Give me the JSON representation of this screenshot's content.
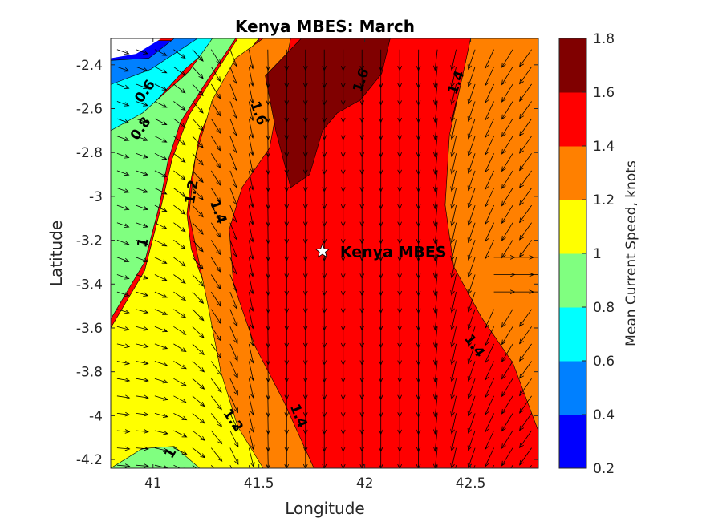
{
  "chart_data": {
    "type": "contourf-quiver",
    "title": "Kenya MBES: March",
    "xlabel": "Longitude",
    "ylabel": "Latitude",
    "xlim": [
      40.8,
      42.82
    ],
    "ylim": [
      -4.24,
      -2.28
    ],
    "xticks": [
      41,
      41.5,
      42,
      42.5
    ],
    "xtick_labels": [
      "41",
      "41.5",
      "42",
      "42.5"
    ],
    "yticks": [
      -2.4,
      -2.6,
      -2.8,
      -3,
      -3.2,
      -3.4,
      -3.6,
      -3.8,
      -4,
      -4.2
    ],
    "ytick_labels": [
      "-2.4",
      "-2.6",
      "-2.8",
      "-3",
      "-3.2",
      "-3.4",
      "-3.6",
      "-3.8",
      "-4",
      "-4.2"
    ],
    "colorbar": {
      "label": "Mean Current Speed, knots",
      "levels": [
        0.2,
        0.4,
        0.6,
        0.8,
        1.0,
        1.2,
        1.4,
        1.6,
        1.8
      ],
      "tick_labels": [
        "0.2",
        "0.4",
        "0.6",
        "0.8",
        "1",
        "1.2",
        "1.4",
        "1.6",
        "1.8"
      ],
      "colors": [
        "#0000ff",
        "#0080ff",
        "#00ffff",
        "#80ff80",
        "#ffff00",
        "#ff8000",
        "#ff0000",
        "#800000"
      ]
    },
    "speed_bands": [
      {
        "min": 0.2,
        "max": 0.4,
        "color": "#0000ff",
        "points": [
          [
            40.8,
            -2.29
          ],
          [
            41.2,
            -2.29
          ],
          [
            41.04,
            -2.42
          ],
          [
            40.95,
            -2.48
          ],
          [
            40.8,
            -2.51
          ]
        ]
      },
      {
        "min": 0.4,
        "max": 0.6,
        "color": "#0080ff",
        "points": [
          [
            40.8,
            -2.38
          ],
          [
            40.98,
            -2.37
          ],
          [
            41.1,
            -2.28
          ],
          [
            41.26,
            -2.28
          ],
          [
            41.16,
            -2.37
          ],
          [
            41.0,
            -2.47
          ],
          [
            40.88,
            -2.56
          ],
          [
            40.8,
            -2.6
          ]
        ]
      },
      {
        "min": 0.6,
        "max": 0.8,
        "color": "#00ffff",
        "points": [
          [
            40.8,
            -2.49
          ],
          [
            40.99,
            -2.42
          ],
          [
            41.21,
            -2.28
          ],
          [
            41.32,
            -2.28
          ],
          [
            41.15,
            -2.42
          ],
          [
            41.0,
            -2.58
          ],
          [
            40.9,
            -2.72
          ],
          [
            40.8,
            -2.85
          ]
        ]
      },
      {
        "min": 0.8,
        "max": 1.0,
        "color": "#80ff80",
        "points": [
          [
            40.8,
            -2.7
          ],
          [
            40.95,
            -2.62
          ],
          [
            41.17,
            -2.43
          ],
          [
            41.28,
            -2.28
          ],
          [
            41.39,
            -2.28
          ],
          [
            41.25,
            -2.48
          ],
          [
            41.13,
            -2.66
          ],
          [
            41.07,
            -2.84
          ],
          [
            41.03,
            -3.04
          ],
          [
            40.96,
            -3.3
          ],
          [
            40.8,
            -3.56
          ]
        ]
      },
      {
        "min": 0.8,
        "max": 1.0,
        "color": "#80ff80",
        "points": [
          [
            40.8,
            -4.24
          ],
          [
            40.92,
            -4.16
          ],
          [
            41.04,
            -4.13
          ],
          [
            41.16,
            -4.16
          ],
          [
            41.22,
            -4.24
          ]
        ]
      },
      {
        "min": 1.0,
        "max": 1.2,
        "color": "#ffff00",
        "points": [
          [
            41.04,
            -3.04
          ],
          [
            41.09,
            -2.83
          ],
          [
            41.17,
            -2.63
          ],
          [
            41.3,
            -2.43
          ],
          [
            41.4,
            -2.28
          ],
          [
            41.5,
            -2.28
          ],
          [
            41.33,
            -2.48
          ],
          [
            41.22,
            -2.72
          ],
          [
            41.18,
            -2.92
          ],
          [
            41.16,
            -3.08
          ],
          [
            41.18,
            -3.24
          ],
          [
            41.28,
            -3.5
          ],
          [
            41.35,
            -3.8
          ],
          [
            41.43,
            -4.05
          ],
          [
            41.54,
            -4.24
          ],
          [
            41.22,
            -4.24
          ],
          [
            41.1,
            -4.14
          ],
          [
            40.95,
            -4.15
          ],
          [
            40.8,
            -4.24
          ],
          [
            40.8,
            -3.6
          ],
          [
            40.96,
            -3.34
          ]
        ]
      },
      {
        "min": 1.2,
        "max": 1.4,
        "color": "#ff8000",
        "points": [
          [
            41.17,
            -3.08
          ],
          [
            41.2,
            -2.82
          ],
          [
            41.28,
            -2.56
          ],
          [
            41.39,
            -2.37
          ],
          [
            41.52,
            -2.28
          ],
          [
            41.65,
            -2.28
          ],
          [
            41.6,
            -2.52
          ],
          [
            41.55,
            -2.78
          ],
          [
            41.42,
            -2.96
          ],
          [
            41.36,
            -3.15
          ],
          [
            41.38,
            -3.4
          ],
          [
            41.48,
            -3.68
          ],
          [
            41.62,
            -3.94
          ],
          [
            41.76,
            -4.24
          ],
          [
            41.52,
            -4.24
          ],
          [
            41.4,
            -4.05
          ],
          [
            41.32,
            -3.8
          ],
          [
            41.26,
            -3.5
          ]
        ]
      },
      {
        "min": 1.2,
        "max": 1.4,
        "color": "#ff8000",
        "points": [
          [
            42.5,
            -2.28
          ],
          [
            42.82,
            -2.28
          ],
          [
            42.82,
            -4.07
          ],
          [
            42.7,
            -3.76
          ],
          [
            42.55,
            -3.55
          ],
          [
            42.42,
            -3.32
          ],
          [
            42.38,
            -3.04
          ],
          [
            42.4,
            -2.72
          ],
          [
            42.46,
            -2.46
          ]
        ]
      },
      {
        "min": 1.6,
        "max": 1.8,
        "color": "#800000",
        "points": [
          [
            41.7,
            -2.28
          ],
          [
            42.12,
            -2.28
          ],
          [
            42.08,
            -2.44
          ],
          [
            41.98,
            -2.56
          ],
          [
            41.87,
            -2.62
          ],
          [
            41.8,
            -2.7
          ],
          [
            41.74,
            -2.9
          ],
          [
            41.65,
            -2.96
          ],
          [
            41.58,
            -2.7
          ],
          [
            41.53,
            -2.45
          ]
        ]
      }
    ],
    "contour_labels": [
      {
        "text": "0.6",
        "x": 40.96,
        "y": -2.52,
        "angle": -55
      },
      {
        "text": "0.8",
        "x": 40.94,
        "y": -2.69,
        "angle": -55
      },
      {
        "text": "1.2",
        "x": 41.18,
        "y": -2.98,
        "angle": -80
      },
      {
        "text": "1.4",
        "x": 41.31,
        "y": -3.07,
        "angle": 70
      },
      {
        "text": "1",
        "x": 40.95,
        "y": -3.21,
        "angle": -75
      },
      {
        "text": "1.6",
        "x": 41.5,
        "y": -2.62,
        "angle": 70
      },
      {
        "text": "1.6",
        "x": 41.98,
        "y": -2.47,
        "angle": -72
      },
      {
        "text": "1.4",
        "x": 42.43,
        "y": -2.48,
        "angle": -70
      },
      {
        "text": "1.4",
        "x": 42.52,
        "y": -3.68,
        "angle": 55
      },
      {
        "text": "1.2",
        "x": 41.38,
        "y": -4.02,
        "angle": 55
      },
      {
        "text": "1.4",
        "x": 41.69,
        "y": -4.0,
        "angle": 68
      },
      {
        "text": "1",
        "x": 41.08,
        "y": -4.17,
        "angle": -60
      }
    ],
    "vectors": {
      "lon_start": 40.83,
      "lon_step": 0.089,
      "lon_count": 23,
      "lat_start": -2.33,
      "lat_step": -0.079,
      "lat_count": 25,
      "scale": 0.11,
      "description": "Southward flow in the central core turning southeast on the west flank; southwestward on the east side"
    },
    "annotations": [
      {
        "text": "Kenya MBES",
        "x": 41.8,
        "y": -3.25,
        "marker": "star"
      }
    ]
  }
}
